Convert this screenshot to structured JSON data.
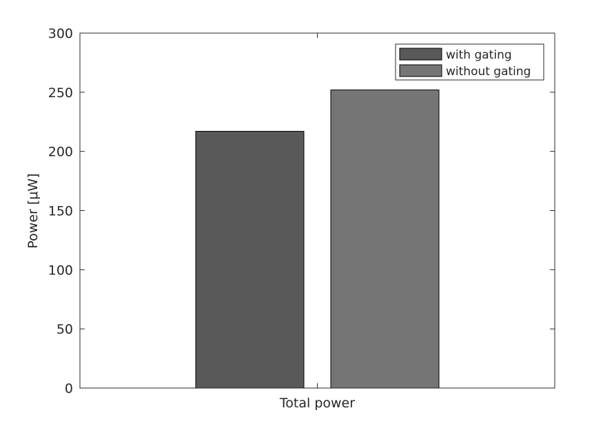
{
  "chart_data": {
    "type": "bar",
    "categories": [
      "Total power"
    ],
    "series": [
      {
        "name": "with gating",
        "values": [
          217
        ],
        "color": "#595959"
      },
      {
        "name": "without gating",
        "values": [
          252
        ],
        "color": "#757575"
      }
    ],
    "xlabel": "Total power",
    "ylabel": "Power [μW]",
    "ylim": [
      0,
      300
    ],
    "yticks": [
      0,
      50,
      100,
      150,
      200,
      250,
      300
    ],
    "yticklabels": [
      "0",
      "50",
      "100",
      "150",
      "200",
      "250",
      "300"
    ],
    "grid": false,
    "legend_position": "top-right"
  }
}
